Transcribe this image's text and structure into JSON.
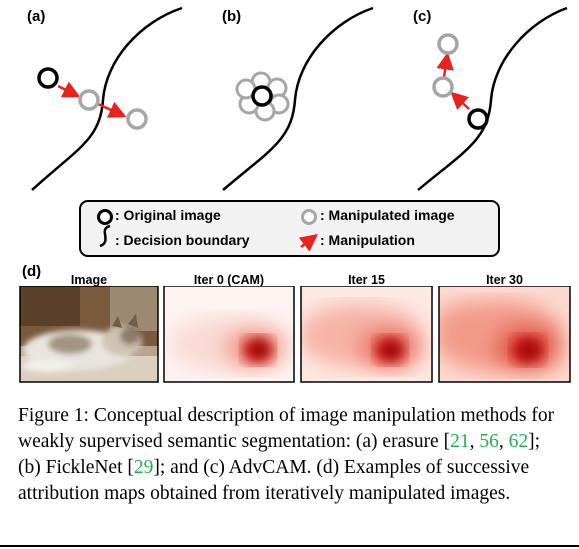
{
  "panels": {
    "a": "(a)",
    "b": "(b)",
    "c": "(c)",
    "d": "(d)"
  },
  "legend": {
    "original": ": Original image",
    "manipulated": ": Manipulated image",
    "boundary": ": Decision boundary",
    "manipulation": ": Manipulation"
  },
  "maps": {
    "image": "Image",
    "iter0": "Iter 0 (CAM)",
    "iter15": "Iter 15",
    "iter30": "Iter 30"
  },
  "caption": {
    "prefix": "Figure 1:  Conceptual description of image manipulation methods for weakly supervised semantic segmentation: (a) erasure [",
    "ref1": "21",
    "sep1": ", ",
    "ref2": "56",
    "sep2": ", ",
    "ref3": "62",
    "mid1": "]; (b) FickleNet [",
    "ref4": "29",
    "mid2": "]; and (c) AdvCAM. (d) Examples of successive attribution maps obtained from iteratively manipulated images."
  },
  "colors": {
    "arrow": "#e8231f",
    "manipulated": "#a6a6a6",
    "original": "#000000",
    "reference_link": "#22b14c",
    "heat": "#c00000"
  }
}
